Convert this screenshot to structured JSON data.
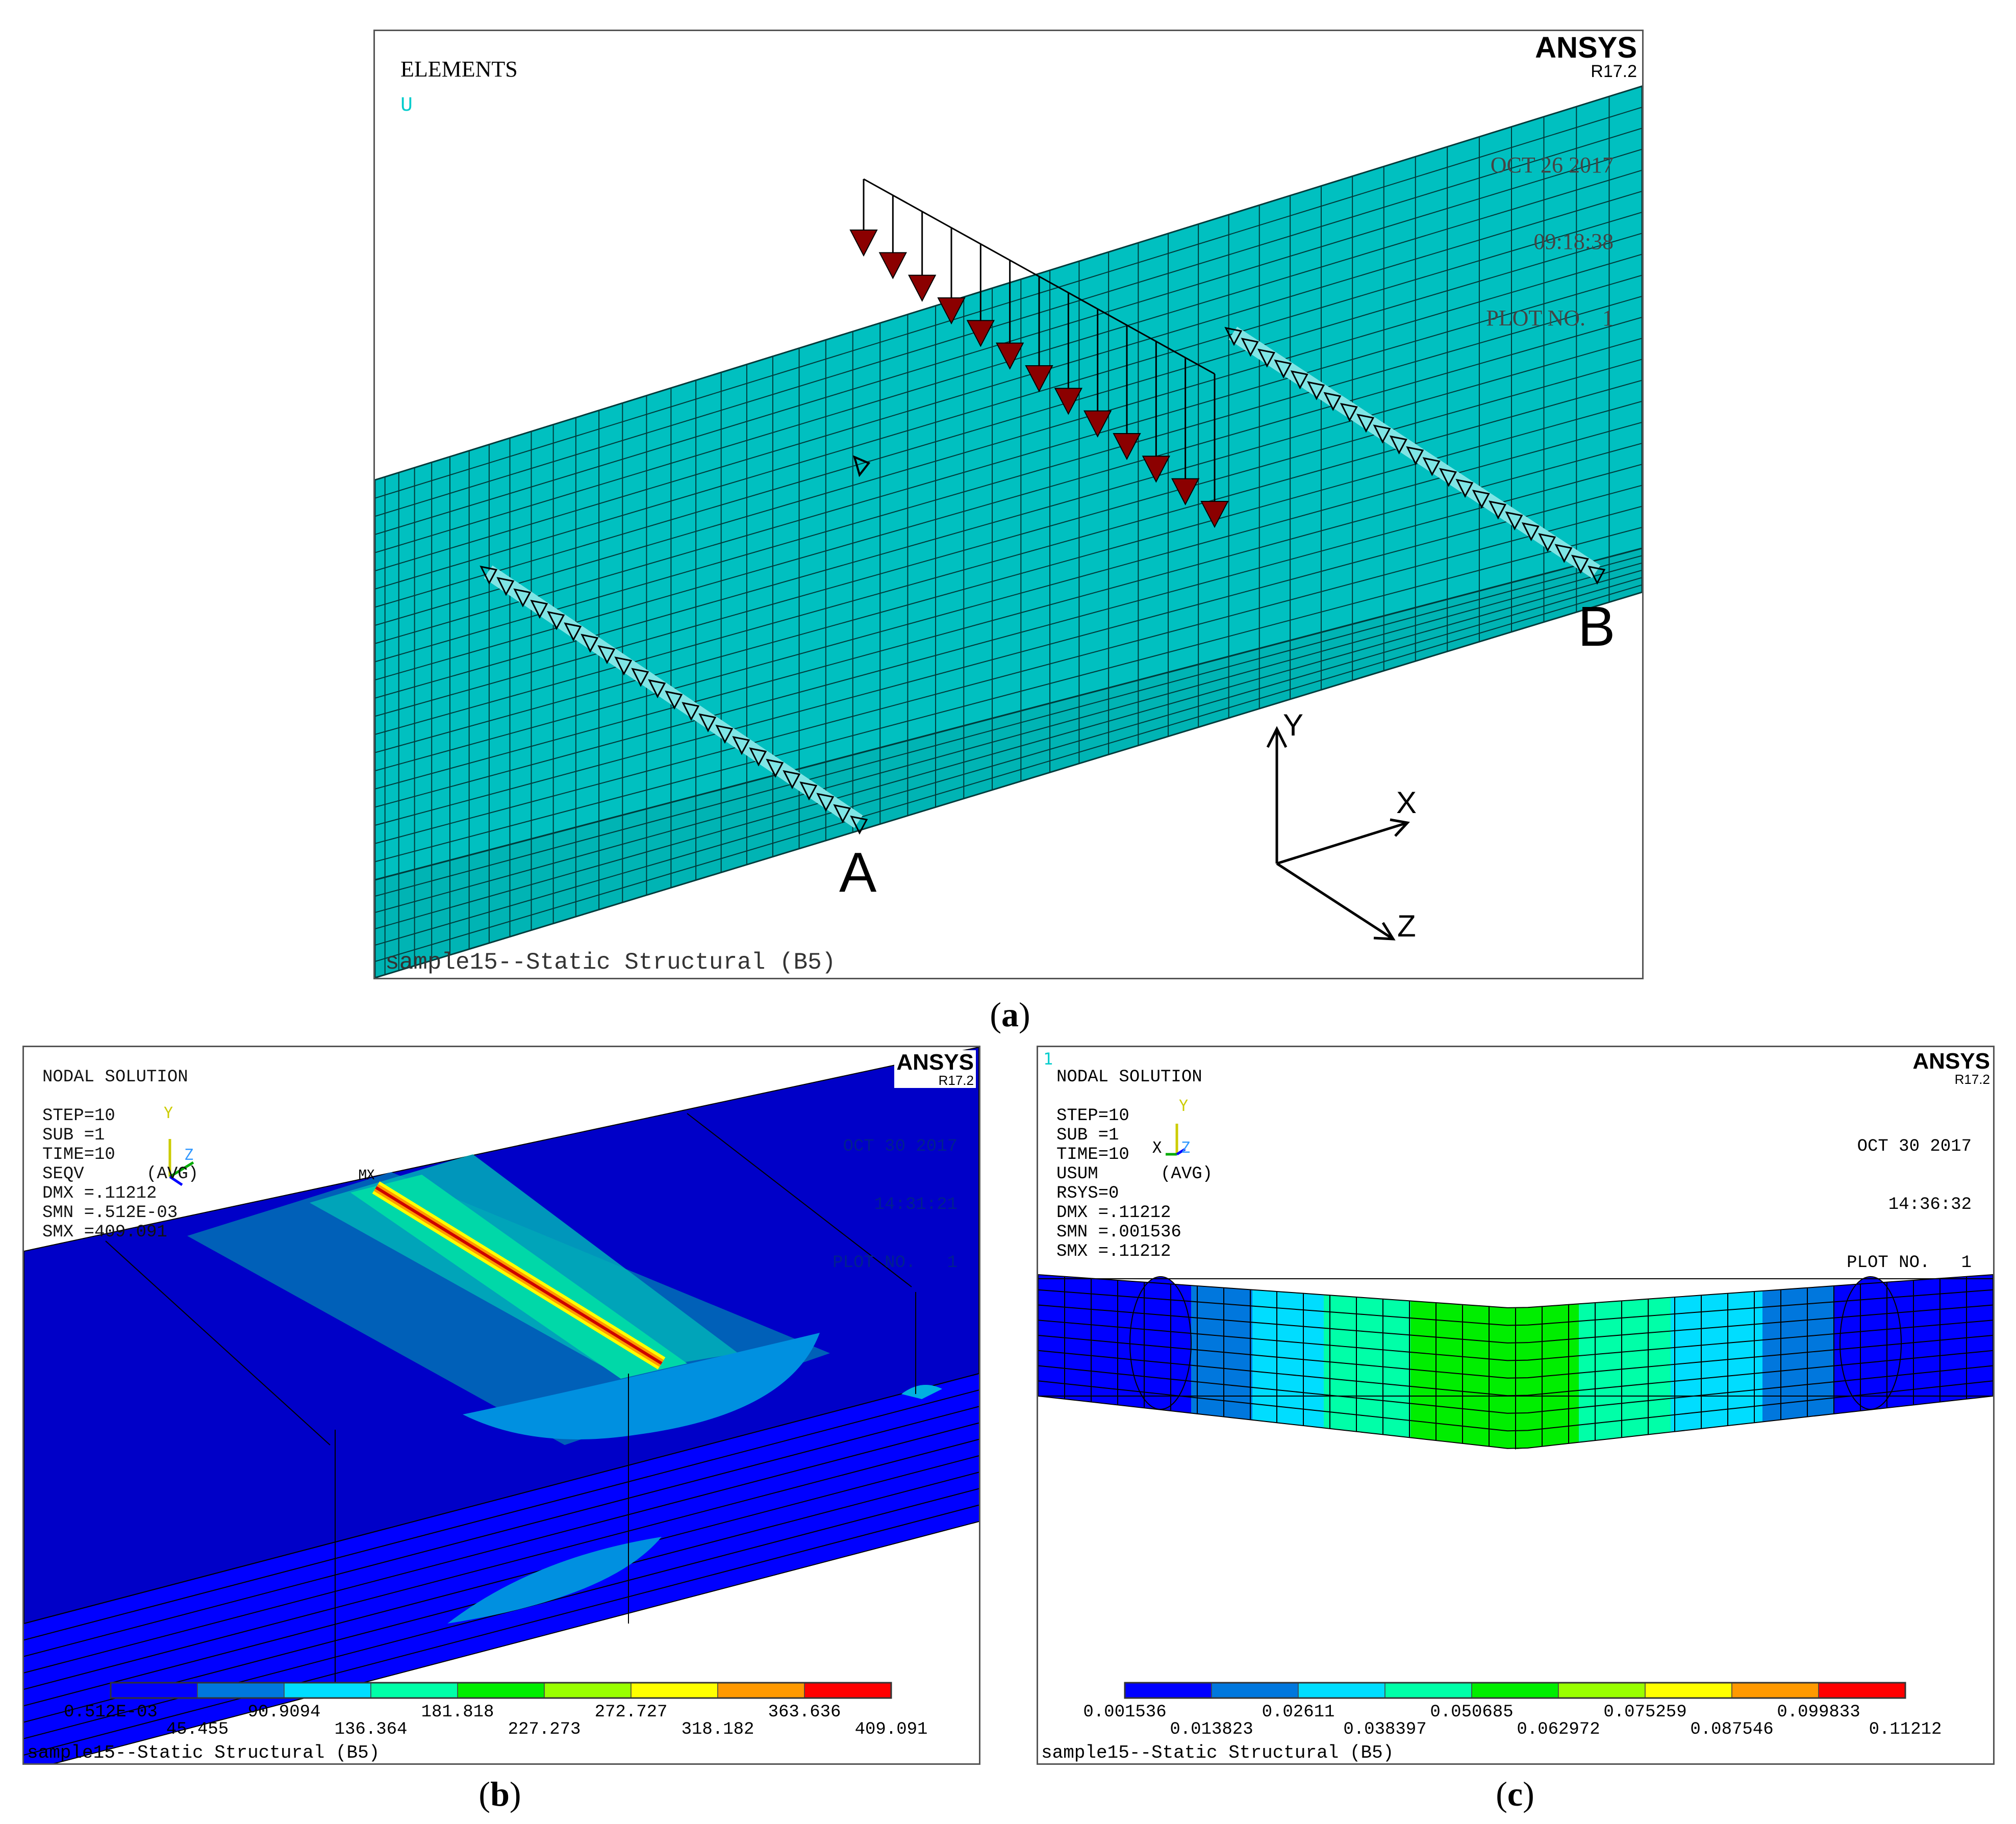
{
  "panel_a": {
    "title": "ELEMENTS",
    "u_label": "U",
    "brand": "ANSYS",
    "release": "R17.2",
    "date": "OCT 26 2017",
    "time": "09:18:38",
    "plot_no": "PLOT NO.   1",
    "footer": "sample15--Static Structural (B5)",
    "support_a": "A",
    "support_b": "B",
    "axis_y": "Y",
    "axis_x": "X",
    "axis_z": "Z",
    "caption_letter": "a"
  },
  "panel_b": {
    "brand": "ANSYS",
    "release": "R17.2",
    "info_lines": [
      "NODAL SOLUTION",
      "",
      "STEP=10",
      "SUB =1",
      "TIME=10",
      "SEQV      (AVG)",
      "DMX =.11212",
      "SMN =.512E-03",
      "SMX =409.091"
    ],
    "date": "OCT 30 2017",
    "time": "14:31:21",
    "plot_no": "PLOT NO.   1",
    "mx": "MX",
    "triad_y": "Y",
    "triad_x": "X",
    "triad_z": "Z",
    "legend_top": [
      "0.512E-03",
      "90.9094",
      "181.818",
      "272.727",
      "363.636"
    ],
    "legend_bottom": [
      "45.455",
      "136.364",
      "227.273",
      "318.182",
      "409.091"
    ],
    "footer": "sample15--Static Structural (B5)",
    "caption_letter": "b"
  },
  "panel_c": {
    "brand": "ANSYS",
    "release": "R17.2",
    "window_no": "1",
    "info_lines": [
      "NODAL SOLUTION",
      "",
      "STEP=10",
      "SUB =1",
      "TIME=10",
      "USUM      (AVG)",
      "RSYS=0",
      "DMX =.11212",
      "SMN =.001536",
      "SMX =.11212"
    ],
    "date": "OCT 30 2017",
    "time": "14:36:32",
    "plot_no": "PLOT NO.   1",
    "triad_y": "Y",
    "triad_x": "X",
    "triad_z": "Z",
    "legend_top": [
      "0.001536",
      "0.02611",
      "0.050685",
      "0.075259",
      "0.099833"
    ],
    "legend_bottom": [
      "0.013823",
      "0.038397",
      "0.062972",
      "0.087546",
      "0.11212"
    ],
    "footer": "sample15--Static Structural (B5)",
    "caption_letter": "c"
  },
  "legend_colors": [
    "#0000ff",
    "#0077dd",
    "#00ddff",
    "#00ffa8",
    "#00ee00",
    "#99ff00",
    "#ffff00",
    "#ff9900",
    "#ff0000"
  ],
  "mesh_color": "#00c0c0",
  "load_color": "#8b0000"
}
